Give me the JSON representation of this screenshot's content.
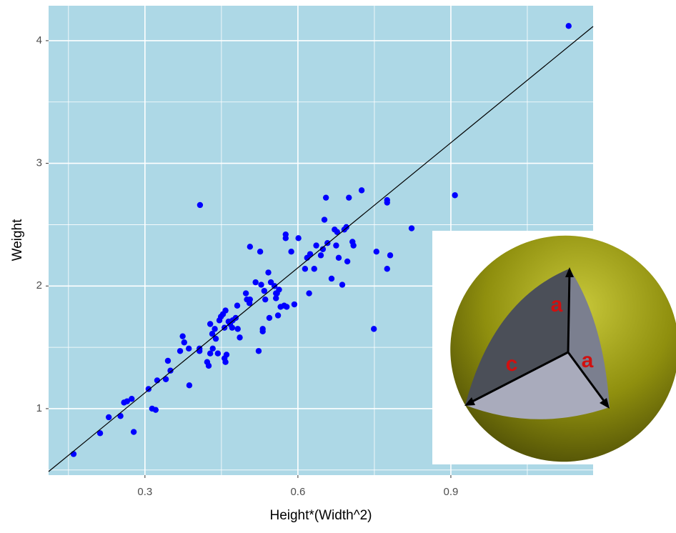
{
  "chart_data": {
    "type": "scatter",
    "x_label": "Height*(Width^2)",
    "y_label": "Weight",
    "color": "#0000ff",
    "background": "#add8e6",
    "grid": true,
    "xlim": [
      0.111,
      1.179
    ],
    "ylim": [
      0.458,
      4.285
    ],
    "xticks": [
      0.3,
      0.6,
      0.9
    ],
    "yticks": [
      1,
      2,
      3,
      4
    ],
    "x_minor_ticks": [
      0.15,
      0.45,
      0.75,
      1.05
    ],
    "y_minor_ticks": [
      0.5,
      1.5,
      2.5,
      3.5
    ],
    "x": [
      0.16,
      0.212,
      0.229,
      0.252,
      0.259,
      0.265,
      0.274,
      0.278,
      0.307,
      0.314,
      0.321,
      0.324,
      0.341,
      0.345,
      0.35,
      0.369,
      0.374,
      0.377,
      0.386,
      0.387,
      0.407,
      0.407,
      0.408,
      0.422,
      0.425,
      0.428,
      0.428,
      0.432,
      0.433,
      0.437,
      0.439,
      0.443,
      0.446,
      0.449,
      0.453,
      0.456,
      0.458,
      0.456,
      0.458,
      0.46,
      0.464,
      0.467,
      0.471,
      0.472,
      0.478,
      0.481,
      0.482,
      0.486,
      0.498,
      0.5,
      0.505,
      0.506,
      0.506,
      0.517,
      0.523,
      0.526,
      0.528,
      0.531,
      0.531,
      0.534,
      0.536,
      0.542,
      0.544,
      0.547,
      0.554,
      0.557,
      0.557,
      0.559,
      0.561,
      0.563,
      0.566,
      0.573,
      0.576,
      0.576,
      0.578,
      0.587,
      0.593,
      0.601,
      0.614,
      0.618,
      0.622,
      0.624,
      0.632,
      0.636,
      0.645,
      0.649,
      0.652,
      0.655,
      0.658,
      0.666,
      0.672,
      0.675,
      0.677,
      0.68,
      0.687,
      0.691,
      0.695,
      0.697,
      0.7,
      0.707,
      0.709,
      0.725,
      0.749,
      0.754,
      0.775,
      0.775,
      0.775,
      0.781,
      0.823,
      0.908,
      1.131
    ],
    "y": [
      0.63,
      0.8,
      0.93,
      0.94,
      1.05,
      1.06,
      1.08,
      0.81,
      1.16,
      1.0,
      0.99,
      1.23,
      1.24,
      1.39,
      1.31,
      1.47,
      1.59,
      1.54,
      1.49,
      1.19,
      1.49,
      1.47,
      2.66,
      1.38,
      1.35,
      1.45,
      1.69,
      1.61,
      1.49,
      1.65,
      1.57,
      1.45,
      1.72,
      1.75,
      1.77,
      1.66,
      1.8,
      1.41,
      1.38,
      1.44,
      1.71,
      1.69,
      1.66,
      1.72,
      1.74,
      1.84,
      1.65,
      1.58,
      1.94,
      1.89,
      1.86,
      2.32,
      1.89,
      2.03,
      1.47,
      2.28,
      2.01,
      1.63,
      1.65,
      1.96,
      1.89,
      2.11,
      1.74,
      2.03,
      2.0,
      1.94,
      1.9,
      1.94,
      1.76,
      1.97,
      1.83,
      1.84,
      2.42,
      2.39,
      1.83,
      2.28,
      1.85,
      2.39,
      2.14,
      2.23,
      1.94,
      2.26,
      2.14,
      2.33,
      2.25,
      2.3,
      2.54,
      2.72,
      2.35,
      2.06,
      2.46,
      2.33,
      2.44,
      2.23,
      2.01,
      2.46,
      2.48,
      2.2,
      2.72,
      2.36,
      2.33,
      2.78,
      1.65,
      2.28,
      2.14,
      2.68,
      2.7,
      2.25,
      2.47,
      2.74,
      4.12
    ],
    "trend_line": {
      "x": [
        0.111,
        1.179
      ],
      "y": [
        0.487,
        4.116
      ]
    },
    "inset": {
      "labels": [
        "a",
        "c",
        "a"
      ]
    }
  }
}
